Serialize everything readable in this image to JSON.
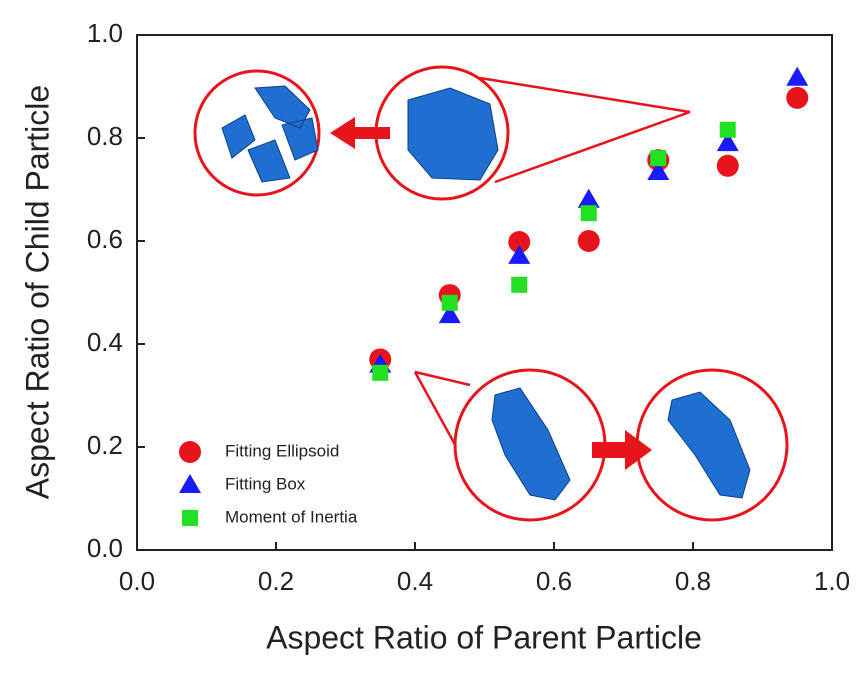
{
  "chart_data": {
    "type": "scatter",
    "xlabel": "Aspect Ratio of Parent Particle",
    "ylabel": "Aspect Ratio of Child Particle",
    "x": [
      0.35,
      0.45,
      0.55,
      0.65,
      0.75,
      0.85,
      0.95
    ],
    "series": [
      {
        "name": "Fitting Ellipsoid",
        "color": "#e8141b",
        "marker": "circle",
        "values": [
          0.37,
          0.495,
          0.598,
          0.6,
          0.757,
          0.746,
          0.878
        ]
      },
      {
        "name": "Fitting Box",
        "color": "#1a1aff",
        "marker": "triangle",
        "values": [
          0.36,
          0.456,
          0.571,
          0.68,
          0.734,
          0.79,
          0.917
        ]
      },
      {
        "name": "Moment of Inertia",
        "color": "#22e022",
        "marker": "square",
        "values": [
          0.344,
          0.48,
          0.515,
          0.654,
          0.761,
          0.816,
          null
        ]
      }
    ],
    "xlim": [
      0,
      1
    ],
    "ylim": [
      0,
      1
    ],
    "xticks": [
      {
        "value": 0,
        "label": "0.0"
      },
      0.2,
      0.4,
      0.6,
      0.8,
      {
        "value": 1,
        "label": "1.0"
      }
    ],
    "yticks": [
      {
        "value": 0,
        "label": "0.0"
      },
      0.2,
      0.4,
      0.6,
      0.8,
      {
        "value": 1,
        "label": "1.0"
      }
    ],
    "legend": "lower left"
  }
}
